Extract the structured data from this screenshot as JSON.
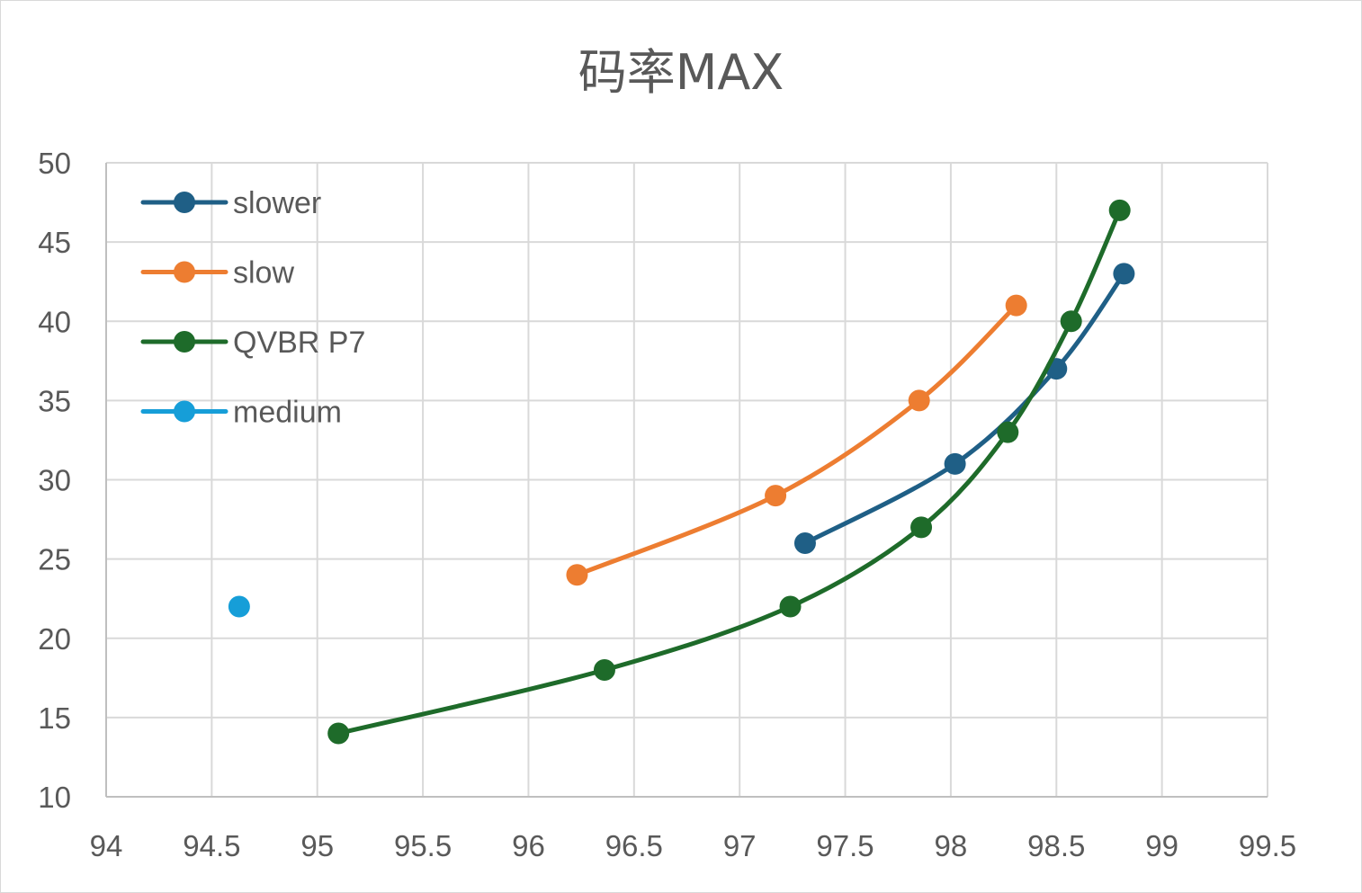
{
  "chart_data": {
    "type": "scatter",
    "title": "码率MAX",
    "xlabel": "",
    "ylabel": "",
    "xlim": [
      94,
      99.5
    ],
    "ylim": [
      10,
      50
    ],
    "x_ticks": [
      "94",
      "94.5",
      "95",
      "95.5",
      "96",
      "96.5",
      "97",
      "97.5",
      "98",
      "98.5",
      "99",
      "99.5"
    ],
    "y_ticks": [
      "50",
      "45",
      "40",
      "35",
      "30",
      "25",
      "20",
      "15",
      "10"
    ],
    "grid": true,
    "legend_position": "top-left",
    "series": [
      {
        "name": "slower",
        "color": "#1f5f86",
        "smooth": true,
        "x": [
          97.31,
          98.02,
          98.5,
          98.82
        ],
        "y": [
          26,
          31,
          37,
          43
        ]
      },
      {
        "name": "slow",
        "color": "#ed7d31",
        "smooth": true,
        "x": [
          96.23,
          97.17,
          97.85,
          98.31
        ],
        "y": [
          24,
          29,
          35,
          41
        ]
      },
      {
        "name": "QVBR P7",
        "color": "#1e6b2a",
        "smooth": true,
        "x": [
          95.1,
          96.36,
          97.24,
          97.86,
          98.27,
          98.57,
          98.8
        ],
        "y": [
          14,
          18,
          22,
          27,
          33,
          40,
          47
        ]
      },
      {
        "name": "medium",
        "color": "#169ed8",
        "smooth": false,
        "x": [
          94.63
        ],
        "y": [
          22
        ]
      }
    ]
  }
}
